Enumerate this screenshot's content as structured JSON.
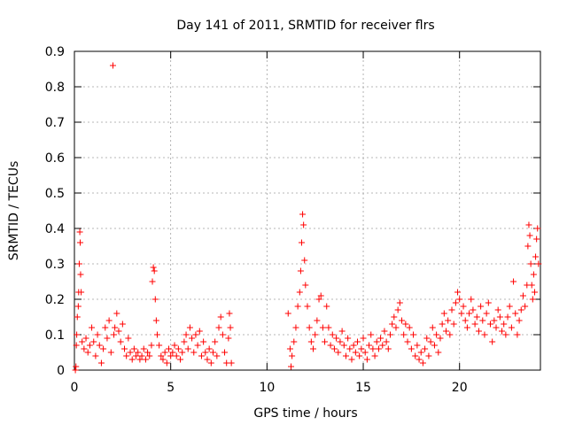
{
  "chart_data": {
    "type": "scatter",
    "title": "Day 141 of 2011, SRMTID for receiver flrs",
    "xlabel": "GPS time / hours",
    "ylabel": "SRMTID / TECUs",
    "xlim": [
      0,
      24.2
    ],
    "ylim": [
      0,
      0.9
    ],
    "xticks": [
      0,
      5,
      10,
      15,
      20
    ],
    "xtick_labels": [
      "0",
      "5",
      "10",
      "15",
      "20"
    ],
    "yticks": [
      0,
      0.1,
      0.2,
      0.3,
      0.4,
      0.5,
      0.6,
      0.7,
      0.8,
      0.9
    ],
    "ytick_labels": [
      "0",
      "0.1",
      "0.2",
      "0.3",
      "0.4",
      "0.5",
      "0.6",
      "0.7",
      "0.8",
      "0.9"
    ],
    "grid": true,
    "marker": "+",
    "color": "#ff0000",
    "series": [
      {
        "name": "SRMTID",
        "points": [
          [
            0.05,
            0.0
          ],
          [
            0.08,
            0.01
          ],
          [
            0.1,
            0.07
          ],
          [
            0.12,
            0.1
          ],
          [
            0.15,
            0.15
          ],
          [
            0.2,
            0.18
          ],
          [
            0.22,
            0.22
          ],
          [
            0.25,
            0.3
          ],
          [
            0.28,
            0.39
          ],
          [
            0.3,
            0.36
          ],
          [
            0.32,
            0.27
          ],
          [
            0.35,
            0.22
          ],
          [
            0.4,
            0.08
          ],
          [
            0.5,
            0.06
          ],
          [
            0.6,
            0.09
          ],
          [
            0.7,
            0.05
          ],
          [
            0.8,
            0.07
          ],
          [
            0.9,
            0.12
          ],
          [
            1.0,
            0.08
          ],
          [
            1.1,
            0.04
          ],
          [
            1.2,
            0.1
          ],
          [
            1.3,
            0.07
          ],
          [
            1.4,
            0.02
          ],
          [
            1.5,
            0.06
          ],
          [
            1.6,
            0.12
          ],
          [
            1.7,
            0.09
          ],
          [
            1.8,
            0.14
          ],
          [
            1.9,
            0.05
          ],
          [
            2.0,
            0.86
          ],
          [
            2.05,
            0.1
          ],
          [
            2.1,
            0.12
          ],
          [
            2.2,
            0.16
          ],
          [
            2.3,
            0.11
          ],
          [
            2.4,
            0.08
          ],
          [
            2.5,
            0.13
          ],
          [
            2.6,
            0.06
          ],
          [
            2.7,
            0.04
          ],
          [
            2.8,
            0.09
          ],
          [
            2.9,
            0.05
          ],
          [
            3.0,
            0.03
          ],
          [
            3.1,
            0.06
          ],
          [
            3.2,
            0.04
          ],
          [
            3.3,
            0.05
          ],
          [
            3.4,
            0.03
          ],
          [
            3.5,
            0.04
          ],
          [
            3.6,
            0.06
          ],
          [
            3.7,
            0.03
          ],
          [
            3.8,
            0.05
          ],
          [
            3.9,
            0.04
          ],
          [
            4.0,
            0.07
          ],
          [
            4.05,
            0.25
          ],
          [
            4.1,
            0.29
          ],
          [
            4.15,
            0.28
          ],
          [
            4.2,
            0.2
          ],
          [
            4.25,
            0.14
          ],
          [
            4.3,
            0.1
          ],
          [
            4.4,
            0.07
          ],
          [
            4.5,
            0.04
          ],
          [
            4.6,
            0.03
          ],
          [
            4.7,
            0.05
          ],
          [
            4.8,
            0.02
          ],
          [
            4.9,
            0.06
          ],
          [
            5.0,
            0.04
          ],
          [
            5.1,
            0.05
          ],
          [
            5.2,
            0.07
          ],
          [
            5.3,
            0.04
          ],
          [
            5.4,
            0.06
          ],
          [
            5.5,
            0.03
          ],
          [
            5.6,
            0.05
          ],
          [
            5.7,
            0.08
          ],
          [
            5.8,
            0.1
          ],
          [
            5.9,
            0.06
          ],
          [
            6.0,
            0.12
          ],
          [
            6.1,
            0.09
          ],
          [
            6.2,
            0.05
          ],
          [
            6.3,
            0.1
          ],
          [
            6.4,
            0.07
          ],
          [
            6.5,
            0.11
          ],
          [
            6.6,
            0.04
          ],
          [
            6.7,
            0.08
          ],
          [
            6.8,
            0.05
          ],
          [
            6.9,
            0.03
          ],
          [
            7.0,
            0.06
          ],
          [
            7.1,
            0.02
          ],
          [
            7.2,
            0.05
          ],
          [
            7.3,
            0.08
          ],
          [
            7.4,
            0.04
          ],
          [
            7.5,
            0.12
          ],
          [
            7.6,
            0.15
          ],
          [
            7.7,
            0.1
          ],
          [
            7.8,
            0.05
          ],
          [
            7.9,
            0.02
          ],
          [
            8.0,
            0.09
          ],
          [
            8.05,
            0.16
          ],
          [
            8.1,
            0.12
          ],
          [
            8.15,
            0.02
          ],
          [
            11.1,
            0.16
          ],
          [
            11.2,
            0.06
          ],
          [
            11.25,
            0.01
          ],
          [
            11.3,
            0.04
          ],
          [
            11.4,
            0.08
          ],
          [
            11.5,
            0.12
          ],
          [
            11.6,
            0.18
          ],
          [
            11.7,
            0.22
          ],
          [
            11.75,
            0.28
          ],
          [
            11.8,
            0.36
          ],
          [
            11.85,
            0.44
          ],
          [
            11.9,
            0.41
          ],
          [
            11.95,
            0.31
          ],
          [
            12.0,
            0.24
          ],
          [
            12.1,
            0.18
          ],
          [
            12.2,
            0.12
          ],
          [
            12.3,
            0.08
          ],
          [
            12.4,
            0.06
          ],
          [
            12.5,
            0.1
          ],
          [
            12.6,
            0.14
          ],
          [
            12.7,
            0.2
          ],
          [
            12.8,
            0.21
          ],
          [
            12.9,
            0.12
          ],
          [
            13.0,
            0.08
          ],
          [
            13.1,
            0.18
          ],
          [
            13.2,
            0.12
          ],
          [
            13.3,
            0.07
          ],
          [
            13.4,
            0.1
          ],
          [
            13.5,
            0.06
          ],
          [
            13.6,
            0.09
          ],
          [
            13.7,
            0.05
          ],
          [
            13.8,
            0.08
          ],
          [
            13.9,
            0.11
          ],
          [
            14.0,
            0.07
          ],
          [
            14.1,
            0.04
          ],
          [
            14.2,
            0.09
          ],
          [
            14.3,
            0.06
          ],
          [
            14.4,
            0.03
          ],
          [
            14.5,
            0.07
          ],
          [
            14.6,
            0.05
          ],
          [
            14.7,
            0.08
          ],
          [
            14.8,
            0.04
          ],
          [
            14.9,
            0.06
          ],
          [
            15.0,
            0.09
          ],
          [
            15.1,
            0.05
          ],
          [
            15.2,
            0.03
          ],
          [
            15.3,
            0.07
          ],
          [
            15.4,
            0.1
          ],
          [
            15.5,
            0.06
          ],
          [
            15.6,
            0.04
          ],
          [
            15.7,
            0.08
          ],
          [
            15.8,
            0.06
          ],
          [
            15.9,
            0.09
          ],
          [
            16.0,
            0.07
          ],
          [
            16.1,
            0.11
          ],
          [
            16.2,
            0.08
          ],
          [
            16.3,
            0.06
          ],
          [
            16.4,
            0.1
          ],
          [
            16.5,
            0.13
          ],
          [
            16.6,
            0.15
          ],
          [
            16.7,
            0.12
          ],
          [
            16.8,
            0.17
          ],
          [
            16.9,
            0.19
          ],
          [
            17.0,
            0.14
          ],
          [
            17.1,
            0.1
          ],
          [
            17.2,
            0.13
          ],
          [
            17.3,
            0.08
          ],
          [
            17.4,
            0.12
          ],
          [
            17.5,
            0.06
          ],
          [
            17.6,
            0.1
          ],
          [
            17.7,
            0.04
          ],
          [
            17.8,
            0.07
          ],
          [
            17.9,
            0.03
          ],
          [
            18.0,
            0.05
          ],
          [
            18.1,
            0.02
          ],
          [
            18.2,
            0.06
          ],
          [
            18.3,
            0.09
          ],
          [
            18.4,
            0.04
          ],
          [
            18.5,
            0.08
          ],
          [
            18.6,
            0.12
          ],
          [
            18.7,
            0.07
          ],
          [
            18.8,
            0.1
          ],
          [
            18.9,
            0.05
          ],
          [
            19.0,
            0.09
          ],
          [
            19.1,
            0.13
          ],
          [
            19.2,
            0.16
          ],
          [
            19.3,
            0.11
          ],
          [
            19.4,
            0.14
          ],
          [
            19.5,
            0.1
          ],
          [
            19.6,
            0.17
          ],
          [
            19.7,
            0.13
          ],
          [
            19.8,
            0.19
          ],
          [
            19.9,
            0.22
          ],
          [
            20.0,
            0.2
          ],
          [
            20.1,
            0.16
          ],
          [
            20.2,
            0.18
          ],
          [
            20.3,
            0.14
          ],
          [
            20.4,
            0.12
          ],
          [
            20.5,
            0.16
          ],
          [
            20.6,
            0.2
          ],
          [
            20.7,
            0.17
          ],
          [
            20.8,
            0.13
          ],
          [
            20.9,
            0.15
          ],
          [
            21.0,
            0.11
          ],
          [
            21.1,
            0.18
          ],
          [
            21.2,
            0.14
          ],
          [
            21.3,
            0.1
          ],
          [
            21.4,
            0.16
          ],
          [
            21.5,
            0.19
          ],
          [
            21.6,
            0.13
          ],
          [
            21.7,
            0.08
          ],
          [
            21.8,
            0.14
          ],
          [
            21.9,
            0.12
          ],
          [
            22.0,
            0.17
          ],
          [
            22.1,
            0.15
          ],
          [
            22.2,
            0.11
          ],
          [
            22.3,
            0.13
          ],
          [
            22.4,
            0.1
          ],
          [
            22.5,
            0.15
          ],
          [
            22.6,
            0.18
          ],
          [
            22.7,
            0.12
          ],
          [
            22.8,
            0.25
          ],
          [
            22.9,
            0.16
          ],
          [
            23.0,
            0.1
          ],
          [
            23.1,
            0.14
          ],
          [
            23.2,
            0.17
          ],
          [
            23.3,
            0.21
          ],
          [
            23.4,
            0.18
          ],
          [
            23.5,
            0.24
          ],
          [
            23.55,
            0.35
          ],
          [
            23.6,
            0.41
          ],
          [
            23.65,
            0.38
          ],
          [
            23.7,
            0.3
          ],
          [
            23.75,
            0.24
          ],
          [
            23.8,
            0.2
          ],
          [
            23.85,
            0.27
          ],
          [
            23.9,
            0.22
          ],
          [
            23.95,
            0.32
          ],
          [
            24.0,
            0.37
          ],
          [
            24.05,
            0.4
          ],
          [
            24.1,
            0.3
          ]
        ]
      }
    ]
  }
}
